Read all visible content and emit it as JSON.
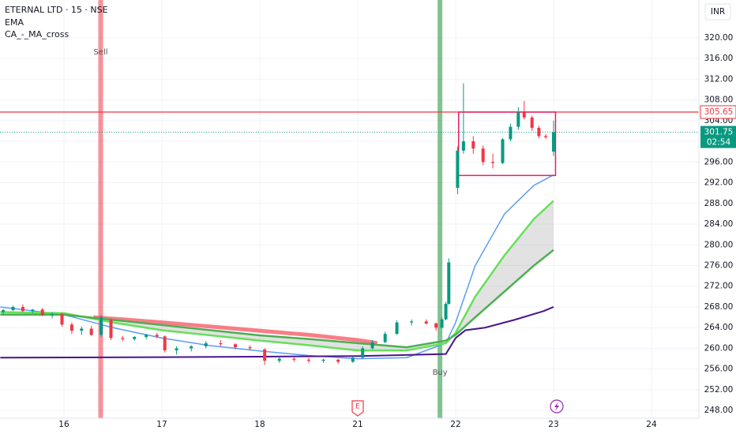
{
  "chart_data": {
    "type": "candlestick",
    "title": "ETERNAL LTD · 15 · NSE",
    "indicators": [
      "EMA",
      "CA_-_MA_cross"
    ],
    "currency": "INR",
    "up_color": "#089981",
    "down_color": "#f23645",
    "xlim": [
      -0.653,
      6.484
    ],
    "ylim": [
      246.5,
      327.3
    ],
    "xticks": [
      {
        "value": 0,
        "label": "16"
      },
      {
        "value": 1,
        "label": "17"
      },
      {
        "value": 2,
        "label": "18"
      },
      {
        "value": 3,
        "label": "21"
      },
      {
        "value": 4,
        "label": "22"
      },
      {
        "value": 5,
        "label": "23"
      },
      {
        "value": 6,
        "label": "24"
      }
    ],
    "yticks": [
      {
        "value": 248,
        "label": "248.00"
      },
      {
        "value": 252,
        "label": "252.00"
      },
      {
        "value": 256,
        "label": "256.00"
      },
      {
        "value": 260,
        "label": "260.00"
      },
      {
        "value": 264,
        "label": "264.00"
      },
      {
        "value": 268,
        "label": "268.00"
      },
      {
        "value": 272,
        "label": "272.00"
      },
      {
        "value": 276,
        "label": "276.00"
      },
      {
        "value": 280,
        "label": "280.00"
      },
      {
        "value": 284,
        "label": "284.00"
      },
      {
        "value": 288,
        "label": "288.00"
      },
      {
        "value": 292,
        "label": "292.00"
      },
      {
        "value": 296,
        "label": "296.00"
      },
      {
        "value": 300,
        "label": "300.00"
      },
      {
        "value": 304,
        "label": "304.00"
      },
      {
        "value": 308,
        "label": "308.00"
      },
      {
        "value": 312,
        "label": "312.00"
      },
      {
        "value": 316,
        "label": "316.00"
      },
      {
        "value": 320,
        "label": "320.00"
      }
    ],
    "grid": true,
    "candles": {
      "x": [
        -0.62,
        -0.52,
        -0.42,
        -0.32,
        -0.22,
        -0.12,
        -0.02,
        0.08,
        0.18,
        0.28,
        0.38,
        0.48,
        0.6,
        0.72,
        0.84,
        0.95,
        1.03,
        1.15,
        1.3,
        1.45,
        1.6,
        1.75,
        1.9,
        2.05,
        2.2,
        2.35,
        2.5,
        2.65,
        2.8,
        2.95,
        3.05,
        3.15,
        3.28,
        3.4,
        3.55,
        3.7,
        3.8,
        3.86,
        3.9,
        3.93,
        4.02,
        4.08,
        4.18,
        4.28,
        4.38,
        4.48,
        4.56,
        4.64,
        4.7,
        4.78,
        4.85,
        4.92,
        5.0
      ],
      "open": [
        267.0,
        267.4,
        268.0,
        267.2,
        267.5,
        266.4,
        266.6,
        264.6,
        263.4,
        263.8,
        262.6,
        265.5,
        262.0,
        261.8,
        262.2,
        262.6,
        262.3,
        259.6,
        260.0,
        260.4,
        261.0,
        260.8,
        260.2,
        259.8,
        257.6,
        258.0,
        257.8,
        257.6,
        257.8,
        257.4,
        258.2,
        260.0,
        261.2,
        262.8,
        265.0,
        265.2,
        264.8,
        264.0,
        265.6,
        268.6,
        291.0,
        298.2,
        300.0,
        298.6,
        296.0,
        295.8,
        300.4,
        302.8,
        305.6,
        304.6,
        302.6,
        301.0,
        298.0
      ],
      "high": [
        267.6,
        268.2,
        268.5,
        267.6,
        267.8,
        267.0,
        266.9,
        265.0,
        264.2,
        264.4,
        266.4,
        265.8,
        262.4,
        262.4,
        262.8,
        263.0,
        262.5,
        260.4,
        260.6,
        261.4,
        261.6,
        261.0,
        260.6,
        260.0,
        258.4,
        258.4,
        258.2,
        258.0,
        258.0,
        258.4,
        260.4,
        261.6,
        263.2,
        265.4,
        265.6,
        265.6,
        265.0,
        266.0,
        269.0,
        277.4,
        299.0,
        311.2,
        301.0,
        299.2,
        297.6,
        300.6,
        303.4,
        306.6,
        307.8,
        305.0,
        303.0,
        301.4,
        304.0
      ],
      "low": [
        266.6,
        267.2,
        267.0,
        266.8,
        266.2,
        265.8,
        264.2,
        262.8,
        262.6,
        262.4,
        262.2,
        261.6,
        261.4,
        261.5,
        261.8,
        262.0,
        259.2,
        258.8,
        259.4,
        260.0,
        260.4,
        259.8,
        259.6,
        256.8,
        257.2,
        257.4,
        257.2,
        257.2,
        257.0,
        257.2,
        258.0,
        259.8,
        261.0,
        262.6,
        264.4,
        264.6,
        263.4,
        263.8,
        265.4,
        268.4,
        289.8,
        297.6,
        297.6,
        295.4,
        294.8,
        295.6,
        300.0,
        302.2,
        304.2,
        302.0,
        300.6,
        300.4,
        297.2
      ],
      "close": [
        267.4,
        268.0,
        267.2,
        267.5,
        266.4,
        266.6,
        264.6,
        263.4,
        263.8,
        262.6,
        266.0,
        262.0,
        261.8,
        262.2,
        262.6,
        262.3,
        259.6,
        260.0,
        260.4,
        261.0,
        260.8,
        260.2,
        260.0,
        257.6,
        258.0,
        257.8,
        257.6,
        257.8,
        257.4,
        258.2,
        260.0,
        261.2,
        262.8,
        265.0,
        265.2,
        264.8,
        264.0,
        265.6,
        268.6,
        276.6,
        298.2,
        300.0,
        298.6,
        296.0,
        295.8,
        300.4,
        302.8,
        305.6,
        304.6,
        302.6,
        301.0,
        300.8,
        301.75
      ]
    },
    "lines": [
      {
        "color": "#f7525f",
        "width": 5,
        "x": [
          0.3,
          0.6,
          1,
          1.5,
          2,
          2.5,
          3,
          3.2
        ],
        "values": [
          266,
          265.6,
          265,
          264.2,
          263.4,
          262.6,
          261.6,
          261
        ]
      },
      {
        "color": "#5b9cf6",
        "width": 1.5,
        "x": [
          -0.65,
          0,
          0.5,
          1,
          1.5,
          2,
          2.5,
          3,
          3.5,
          3.9,
          4.0,
          4.2,
          4.5,
          4.8,
          5.0
        ],
        "values": [
          268,
          266.5,
          264,
          262,
          260.5,
          259.5,
          258.6,
          258,
          258.2,
          261,
          265,
          276,
          286,
          291.5,
          293.5
        ]
      },
      {
        "color": "#66e05a",
        "width": 2.5,
        "x": [
          -0.65,
          0,
          0.5,
          1,
          1.5,
          2,
          2.5,
          3,
          3.5,
          3.9,
          4.0,
          4.2,
          4.5,
          4.8,
          5.0
        ],
        "values": [
          267,
          266.8,
          265,
          263.5,
          262.5,
          261.5,
          260.6,
          259.6,
          259.6,
          261,
          263,
          270,
          278,
          285,
          288.5
        ]
      },
      {
        "color": "#4caf50",
        "width": 2.5,
        "x": [
          -0.65,
          0,
          0.5,
          1,
          1.5,
          2,
          2.5,
          3,
          3.5,
          3.9,
          4.0,
          4.2,
          4.5,
          4.8,
          5.0
        ],
        "values": [
          266.5,
          266.5,
          265.5,
          264.5,
          263.5,
          262.5,
          261.8,
          261,
          260.2,
          261.5,
          262.6,
          266,
          271,
          276,
          279
        ]
      },
      {
        "color": "#4a148c",
        "width": 2,
        "x": [
          -0.65,
          1,
          2,
          3,
          3.9,
          4.0,
          4.1,
          4.3,
          4.6,
          4.9,
          5.0
        ],
        "values": [
          258.2,
          258.3,
          258.4,
          258.5,
          258.9,
          262,
          263.5,
          264,
          265.5,
          267.2,
          268
        ]
      }
    ],
    "signals": [
      {
        "label": "Sell",
        "x": 0.375,
        "color": "#f23645"
      },
      {
        "label": "Buy",
        "x": 3.84,
        "color": "#1b8f3a"
      }
    ],
    "box": {
      "x": [
        4.03,
        5.02
      ],
      "y": [
        293.4,
        305.65
      ],
      "color": "#e91e63"
    },
    "level": 305.65,
    "last_price": 301.75,
    "countdown": "02:54"
  }
}
